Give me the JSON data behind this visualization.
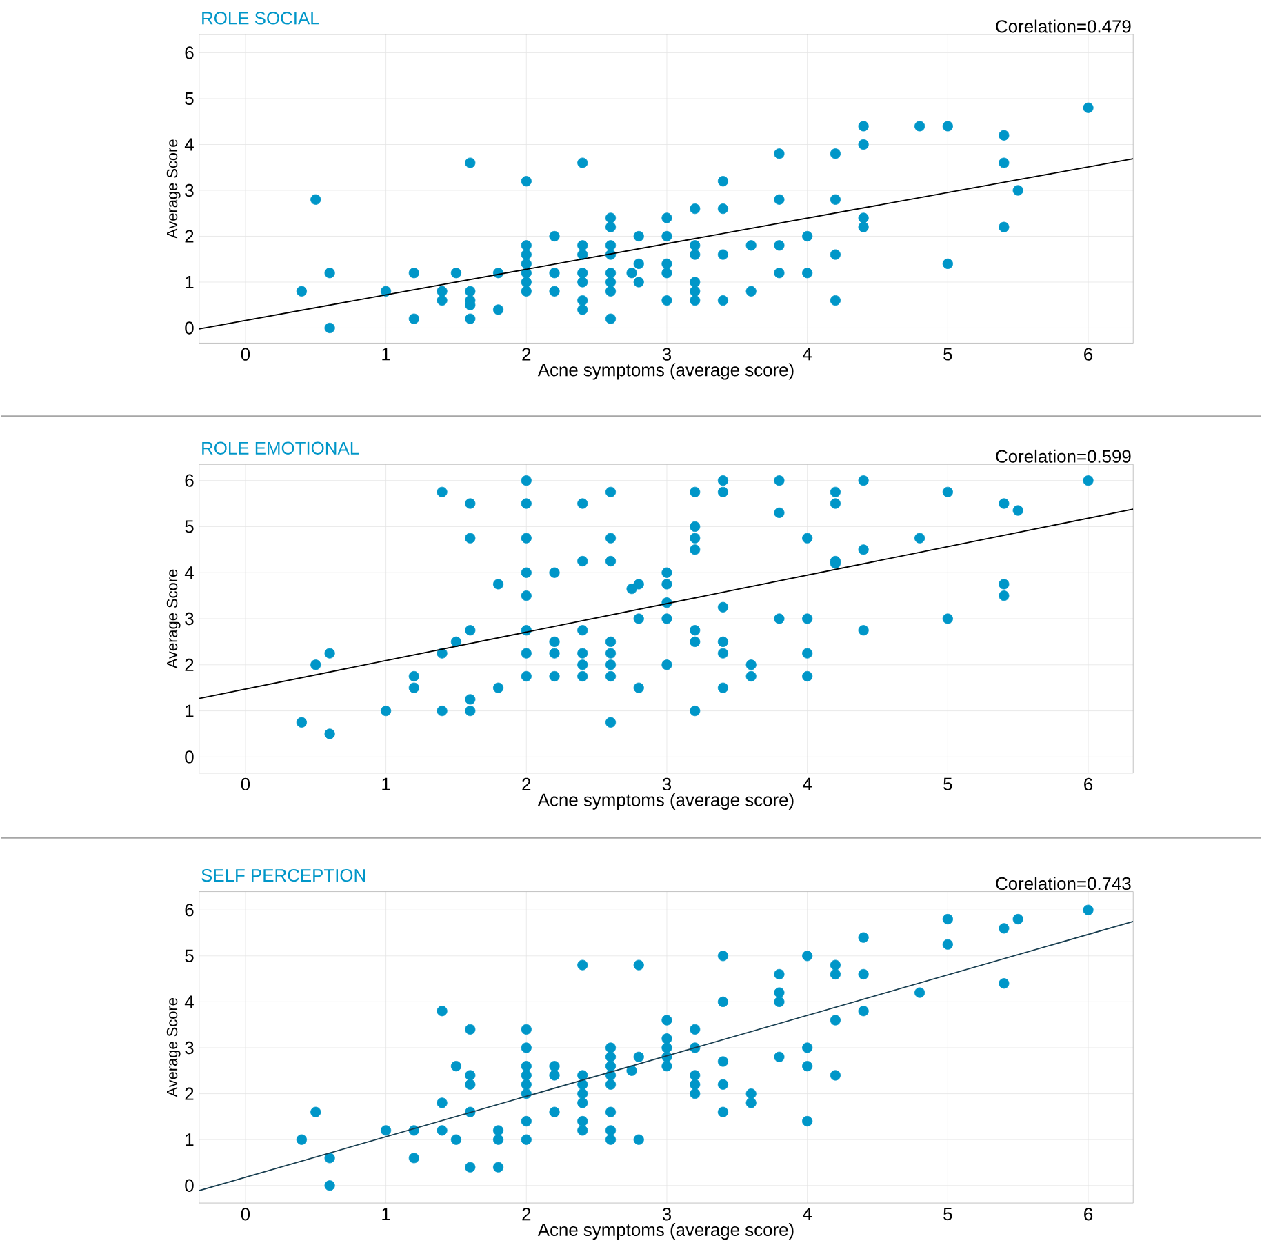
{
  "chart_data": [
    {
      "type": "scatter",
      "title": "ROLE SOCIAL",
      "xlabel": "Acne symptoms (average score)",
      "ylabel": "Average Score",
      "annotations": [
        "Corelation=0.479"
      ],
      "xlim": [
        -0.33,
        6.32
      ],
      "ylim": [
        -0.33,
        6.4
      ],
      "xticks": [
        0,
        1,
        2,
        3,
        4,
        5,
        6
      ],
      "yticks": [
        0,
        1,
        2,
        3,
        4,
        5,
        6
      ],
      "grid": true,
      "series": [
        {
          "type": "scatter",
          "color": "#0096c8",
          "marker": "circle",
          "x": [
            0.4,
            0.5,
            0.6,
            0.6,
            1,
            1.2,
            1.2,
            1.4,
            1.4,
            1.5,
            1.6,
            1.6,
            1.6,
            1.6,
            1.6,
            1.8,
            1.8,
            2,
            2,
            2,
            2,
            2,
            2,
            2,
            2.2,
            2.2,
            2.2,
            2.4,
            2.4,
            2.4,
            2.4,
            2.4,
            2.4,
            2.4,
            2.6,
            2.6,
            2.6,
            2.6,
            2.6,
            2.6,
            2.6,
            2.6,
            2.75,
            2.8,
            2.8,
            2.8,
            3,
            3,
            3,
            3,
            3,
            3.2,
            3.2,
            3.2,
            3.2,
            3.2,
            3.2,
            3.4,
            3.4,
            3.4,
            3.4,
            3.6,
            3.6,
            3.8,
            3.8,
            3.8,
            3.8,
            4,
            4,
            4.2,
            4.2,
            4.2,
            4.2,
            4.4,
            4.4,
            4.4,
            4.4,
            4.8,
            5,
            5,
            5.4,
            5.4,
            5.4,
            5.5,
            6
          ],
          "values": [
            0.8,
            2.8,
            1.2,
            0,
            0.8,
            1.2,
            0.2,
            0.8,
            0.6,
            1.2,
            3.6,
            0.8,
            0.6,
            0.5,
            0.2,
            1.2,
            0.4,
            3.2,
            1.8,
            1.6,
            1.4,
            1.2,
            1.0,
            0.8,
            2.0,
            1.2,
            0.8,
            3.6,
            1.8,
            1.6,
            1.2,
            1.0,
            0.6,
            0.4,
            2.4,
            2.2,
            1.8,
            1.6,
            1.2,
            1.0,
            0.8,
            0.2,
            1.2,
            2.0,
            1.4,
            1.0,
            2.4,
            2.0,
            1.4,
            1.2,
            0.6,
            2.6,
            1.8,
            1.6,
            1.0,
            0.8,
            0.6,
            3.2,
            2.6,
            1.6,
            0.6,
            1.8,
            0.8,
            3.8,
            2.8,
            1.8,
            1.2,
            2.0,
            1.2,
            3.8,
            2.8,
            1.6,
            0.6,
            4.4,
            4.0,
            2.4,
            2.2,
            4.4,
            4.4,
            1.4,
            4.2,
            3.6,
            2.2,
            3.0,
            4.8
          ]
        },
        {
          "type": "line",
          "color": "#000000",
          "x": [
            -0.33,
            6.32
          ],
          "values": [
            -0.02,
            3.69
          ]
        }
      ]
    },
    {
      "type": "scatter",
      "title": "ROLE EMOTIONAL",
      "xlabel": "Acne symptoms (average score)",
      "ylabel": "Average Score",
      "annotations": [
        "Corelation=0.599"
      ],
      "xlim": [
        -0.33,
        6.32
      ],
      "ylim": [
        -0.35,
        6.35
      ],
      "xticks": [
        0,
        1,
        2,
        3,
        4,
        5,
        6
      ],
      "yticks": [
        0,
        1,
        2,
        3,
        4,
        5,
        6
      ],
      "grid": true,
      "series": [
        {
          "type": "scatter",
          "color": "#0096c8",
          "marker": "circle",
          "x": [
            0.4,
            0.5,
            0.6,
            0.6,
            1,
            1.2,
            1.2,
            1.4,
            1.4,
            1.4,
            1.5,
            1.6,
            1.6,
            1.6,
            1.6,
            1.6,
            1.8,
            1.8,
            2,
            2,
            2,
            2,
            2,
            2,
            2,
            2,
            2.2,
            2.2,
            2.2,
            2.2,
            2.4,
            2.4,
            2.4,
            2.4,
            2.4,
            2.4,
            2.6,
            2.6,
            2.6,
            2.6,
            2.6,
            2.6,
            2.6,
            2.6,
            2.75,
            2.8,
            2.8,
            2.8,
            3,
            3,
            3,
            3,
            3,
            3.2,
            3.2,
            3.2,
            3.2,
            3.2,
            3.2,
            3.2,
            3.4,
            3.4,
            3.4,
            3.4,
            3.4,
            3.4,
            3.6,
            3.6,
            3.8,
            3.8,
            3.8,
            4,
            4,
            4,
            4,
            4.2,
            4.2,
            4.2,
            4.2,
            4.4,
            4.4,
            4.4,
            4.8,
            5,
            5,
            5.4,
            5.4,
            5.4,
            5.5,
            6
          ],
          "values": [
            0.75,
            2.0,
            2.25,
            0.5,
            1.0,
            1.75,
            1.5,
            5.75,
            2.25,
            1.0,
            2.5,
            5.5,
            4.75,
            2.75,
            1.25,
            1.0,
            3.75,
            1.5,
            6.0,
            5.5,
            4.75,
            4.0,
            3.5,
            2.75,
            2.25,
            1.75,
            4.0,
            2.5,
            2.25,
            1.75,
            5.5,
            4.25,
            2.75,
            2.25,
            2.0,
            1.75,
            5.75,
            4.75,
            4.25,
            2.5,
            2.25,
            2.0,
            1.75,
            0.75,
            3.65,
            3.75,
            3.0,
            1.5,
            4.0,
            3.75,
            3.35,
            3.0,
            2.0,
            5.75,
            5.0,
            4.75,
            4.5,
            2.75,
            2.5,
            1.0,
            6.0,
            5.75,
            3.25,
            2.5,
            2.25,
            1.5,
            2.0,
            1.75,
            6.0,
            5.3,
            3.0,
            4.75,
            3.0,
            2.25,
            1.75,
            5.75,
            5.5,
            4.25,
            4.2,
            6.0,
            4.5,
            2.75,
            4.75,
            5.75,
            3.0,
            5.5,
            3.75,
            3.5,
            5.35,
            6.0
          ]
        },
        {
          "type": "line",
          "color": "#000000",
          "x": [
            -0.33,
            6.32
          ],
          "values": [
            1.27,
            5.38
          ]
        }
      ]
    },
    {
      "type": "scatter",
      "title": "SELF PERCEPTION",
      "xlabel": "Acne symptoms (average score)",
      "ylabel": "Average Score",
      "annotations": [
        "Corelation=0.743"
      ],
      "xlim": [
        -0.33,
        6.32
      ],
      "ylim": [
        -0.38,
        6.4
      ],
      "xticks": [
        0,
        1,
        2,
        3,
        4,
        5,
        6
      ],
      "yticks": [
        0,
        1,
        2,
        3,
        4,
        5,
        6
      ],
      "grid": true,
      "series": [
        {
          "type": "scatter",
          "color": "#0096c8",
          "marker": "circle",
          "x": [
            0.4,
            0.5,
            0.6,
            0.6,
            1,
            1.2,
            1.2,
            1.4,
            1.4,
            1.4,
            1.5,
            1.5,
            1.6,
            1.6,
            1.6,
            1.6,
            1.6,
            1.8,
            1.8,
            1.8,
            2,
            2,
            2,
            2,
            2,
            2,
            2,
            2,
            2.2,
            2.2,
            2.2,
            2.4,
            2.4,
            2.4,
            2.4,
            2.4,
            2.4,
            2.4,
            2.6,
            2.6,
            2.6,
            2.6,
            2.6,
            2.6,
            2.6,
            2.6,
            2.75,
            2.8,
            2.8,
            2.8,
            3,
            3,
            3,
            3,
            3,
            3.2,
            3.2,
            3.2,
            3.2,
            3.2,
            3.4,
            3.4,
            3.4,
            3.4,
            3.4,
            3.6,
            3.6,
            3.8,
            3.8,
            3.8,
            3.8,
            4,
            4,
            4,
            4,
            4.2,
            4.2,
            4.2,
            4.2,
            4.4,
            4.4,
            4.4,
            4.8,
            5,
            5,
            5.4,
            5.4,
            5.5,
            6
          ],
          "values": [
            1.0,
            1.6,
            0.6,
            0,
            1.2,
            1.2,
            0.6,
            3.8,
            1.8,
            1.2,
            2.6,
            1.0,
            3.4,
            2.4,
            2.2,
            1.6,
            0.4,
            1.2,
            1.0,
            0.4,
            3.4,
            3.0,
            2.6,
            2.4,
            2.2,
            2.0,
            1.4,
            1.0,
            2.6,
            2.4,
            1.6,
            4.8,
            2.4,
            2.2,
            2.0,
            1.8,
            1.4,
            1.2,
            3.0,
            2.8,
            2.6,
            2.4,
            2.2,
            1.6,
            1.2,
            1.0,
            2.5,
            4.8,
            2.8,
            1.0,
            3.6,
            3.2,
            3.0,
            2.8,
            2.6,
            3.4,
            3.0,
            2.4,
            2.2,
            2.0,
            5.0,
            4.0,
            2.7,
            2.2,
            1.6,
            2.0,
            1.8,
            4.6,
            4.2,
            4.0,
            2.8,
            5.0,
            3.0,
            2.6,
            1.4,
            4.8,
            4.6,
            3.6,
            2.4,
            5.4,
            4.6,
            3.8,
            4.2,
            5.8,
            5.25,
            5.6,
            4.4,
            5.8,
            6.0
          ]
        },
        {
          "type": "line",
          "color": "#173d4f",
          "x": [
            -0.33,
            6.32
          ],
          "values": [
            -0.11,
            5.75
          ]
        }
      ]
    }
  ]
}
